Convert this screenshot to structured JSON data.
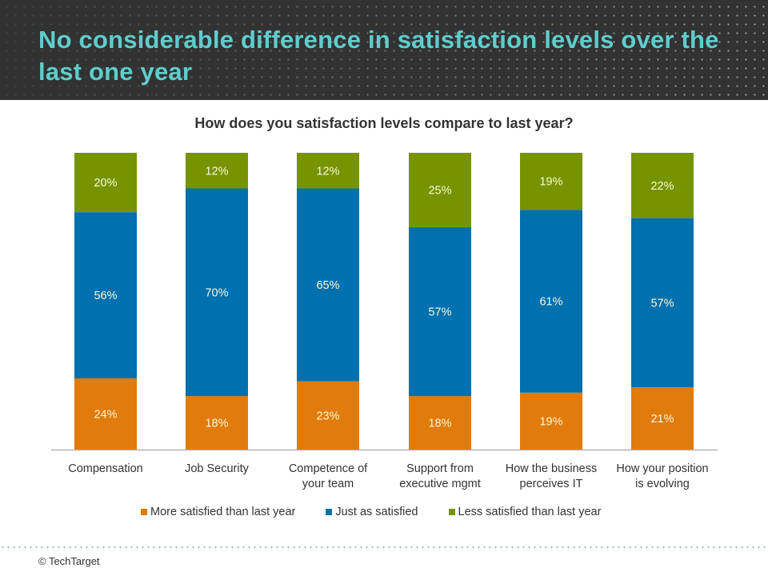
{
  "header": {
    "title": "No considerable difference in satisfaction levels over the last one year"
  },
  "footer": {
    "copyright": "© TechTarget"
  },
  "colors": {
    "more": "#e07b0c",
    "just": "#0070ae",
    "less": "#759400",
    "title": "#5fcdcc",
    "header_bg": "#323232"
  },
  "chart_data": {
    "type": "bar",
    "stacked": true,
    "title": "How does you satisfaction levels compare to last year?",
    "xlabel": "",
    "ylabel": "",
    "ylim": [
      0,
      100
    ],
    "grid": false,
    "legend_position": "bottom",
    "categories": [
      "Compensation",
      "Job Security",
      "Competence of your team",
      "Support from executive mgmt",
      "How the business perceives IT",
      "How your position is evolving"
    ],
    "category_lines": [
      [
        "Compensation"
      ],
      [
        "Job Security"
      ],
      [
        "Competence of",
        "your team"
      ],
      [
        "Support from",
        "executive mgmt"
      ],
      [
        "How the business",
        "perceives IT"
      ],
      [
        "How your position",
        "is evolving"
      ]
    ],
    "series": [
      {
        "name": "More satisfied than last year",
        "key": "more",
        "values": [
          24,
          18,
          23,
          18,
          19,
          21
        ],
        "labels": [
          "24%",
          "18%",
          "23%",
          "18%",
          "19%",
          "21%"
        ]
      },
      {
        "name": "Just as satisfied",
        "key": "just",
        "values": [
          56,
          70,
          65,
          57,
          61,
          57
        ],
        "labels": [
          "56%",
          "70%",
          "65%",
          "57%",
          "61%",
          "57%"
        ]
      },
      {
        "name": "Less satisfied than last year",
        "key": "less",
        "values": [
          20,
          12,
          12,
          25,
          19,
          22
        ],
        "labels": [
          "20%",
          "12%",
          "12%",
          "25%",
          "19%",
          "22%"
        ]
      }
    ]
  }
}
